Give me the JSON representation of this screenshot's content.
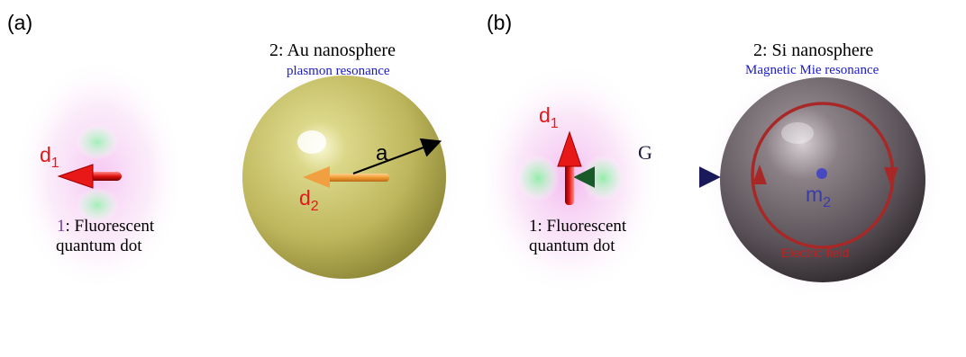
{
  "colors": {
    "dipole_red": "#e21a1a",
    "label_blue": "#1a1acc",
    "gold_sphere": "#c9c46a",
    "si_sphere": "#5a5258",
    "glow_pink": "#f4c8f0",
    "glow_green": "#b8f0c8",
    "moment_orange": "#f0a040",
    "field_red": "#b83030"
  },
  "panel_a": {
    "tag": "(a)",
    "dipole_d1": {
      "base": "d",
      "sub": "1"
    },
    "emitter_number": "1",
    "emitter_label_line1": ": Fluorescent",
    "emitter_label_line2": "quantum dot",
    "sphere_title": "2: Au nanosphere",
    "sphere_subtitle": "plasmon resonance",
    "radius_label": "a",
    "dipole_d2": {
      "base": "d",
      "sub": "2"
    }
  },
  "panel_b": {
    "tag": "(b)",
    "dipole_d1": {
      "base": "d",
      "sub": "1"
    },
    "emitter_label_line1": "1: Fluorescent",
    "emitter_label_line2": "quantum dot",
    "gap_label": "G",
    "sphere_title": "2: Si nanosphere",
    "sphere_subtitle": "Magnetic Mie resonance",
    "moment_m2": {
      "base": "m",
      "sub": "2"
    },
    "field_label": "Electric field"
  }
}
